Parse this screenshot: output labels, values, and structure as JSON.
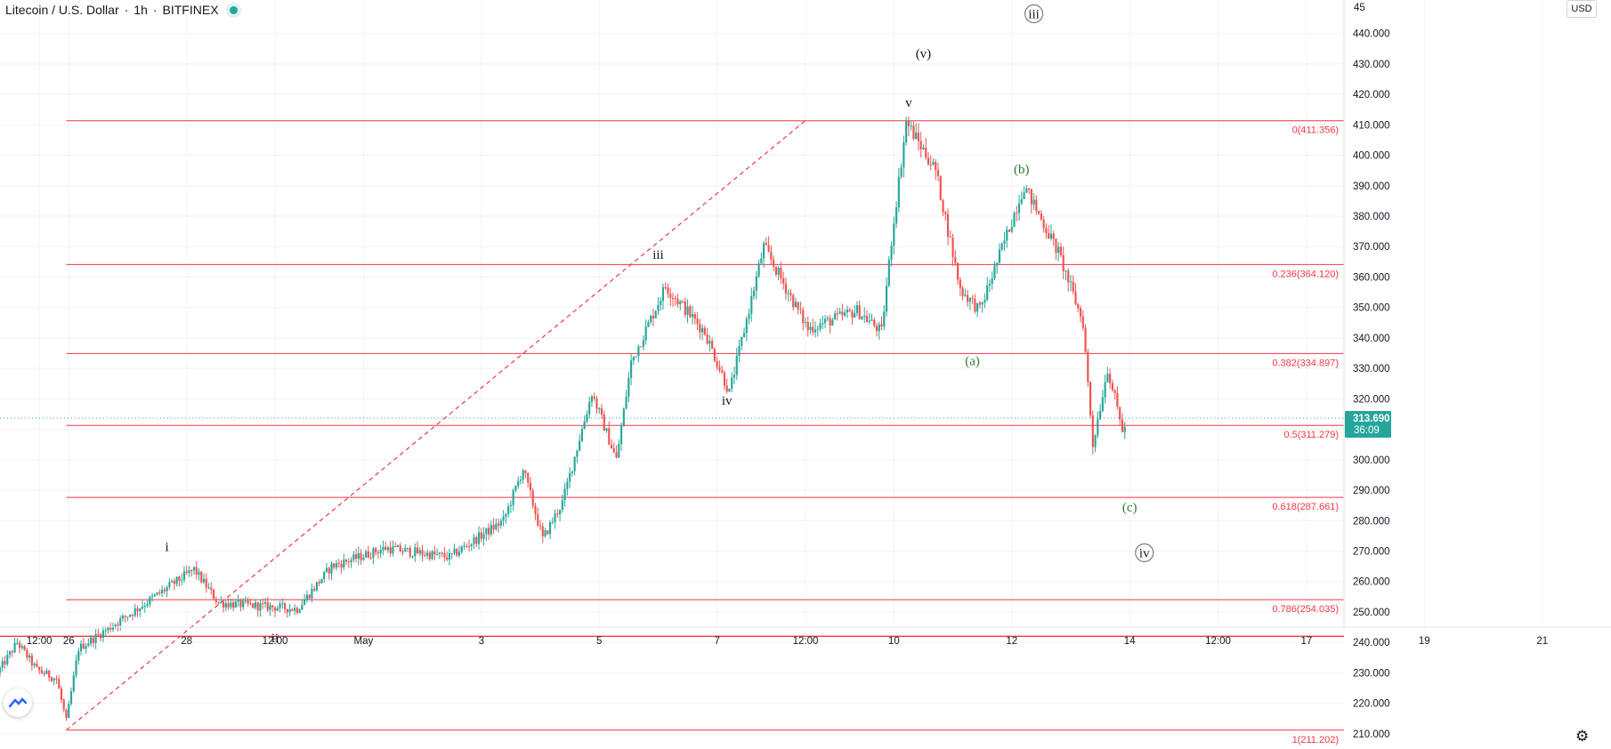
{
  "header": {
    "symbol": "Litecoin / U.S. Dollar",
    "interval": "1h",
    "exchange": "BITFINEX",
    "separator": "·",
    "currency": "USD"
  },
  "colors": {
    "up": "#26a69a",
    "down": "#ef5350",
    "fib": "#f23645",
    "wave_green": "#2e7d32",
    "wave_black": "#131722",
    "price_tag": "#26a69a"
  },
  "icons": {
    "logo": "tradingview-logo-icon",
    "settings": "gear-icon",
    "status": "market-open-dot-icon"
  },
  "chart_data": {
    "type": "candlestick",
    "y_axis": {
      "range": [
        205,
        451
      ],
      "ticks": [
        210,
        220,
        230,
        240,
        250,
        260,
        270,
        280,
        290,
        300,
        310,
        320,
        330,
        340,
        350,
        360,
        370,
        380,
        390,
        400,
        410,
        420,
        430,
        440
      ],
      "tick_labels": [
        "210.000",
        "220.000",
        "230.000",
        "240.000",
        "250.000",
        "260.000",
        "270.000",
        "280.000",
        "290.000",
        "300.000",
        "310.000",
        "320.000",
        "330.000",
        "340.000",
        "350.000",
        "360.000",
        "370.000",
        "380.000",
        "390.000",
        "400.000",
        "410.000",
        "420.000",
        "430.000",
        "440.000"
      ],
      "top_partial_label": "45"
    },
    "x_axis": {
      "range": [
        "2021-04-24 20:00",
        "2021-05-22 04:00"
      ],
      "ticks": [
        {
          "t": "2021-04-25 12:00",
          "label": "12:00"
        },
        {
          "t": "2021-04-26 00:00",
          "label": "26"
        },
        {
          "t": "2021-04-28 00:00",
          "label": "28"
        },
        {
          "t": "2021-04-29 12:00",
          "label": "12:00"
        },
        {
          "t": "2021-05-01 00:00",
          "label": "May"
        },
        {
          "t": "2021-05-03 00:00",
          "label": "3"
        },
        {
          "t": "2021-05-05 00:00",
          "label": "5"
        },
        {
          "t": "2021-05-07 00:00",
          "label": "7"
        },
        {
          "t": "2021-05-08 12:00",
          "label": "12:00"
        },
        {
          "t": "2021-05-10 00:00",
          "label": "10"
        },
        {
          "t": "2021-05-12 00:00",
          "label": "12"
        },
        {
          "t": "2021-05-14 00:00",
          "label": "14"
        },
        {
          "t": "2021-05-15 12:00",
          "label": "12:00"
        },
        {
          "t": "2021-05-17 00:00",
          "label": "17"
        },
        {
          "t": "2021-05-19 00:00",
          "label": "19"
        },
        {
          "t": "2021-05-21 00:00",
          "label": "21"
        }
      ]
    },
    "price_path": [
      {
        "t": "2021-04-24 20:00",
        "p": 230
      },
      {
        "t": "2021-04-25 04:00",
        "p": 240
      },
      {
        "t": "2021-04-25 12:00",
        "p": 231
      },
      {
        "t": "2021-04-25 20:00",
        "p": 228
      },
      {
        "t": "2021-04-26 00:00",
        "p": 214
      },
      {
        "t": "2021-04-26 05:00",
        "p": 238
      },
      {
        "t": "2021-04-27 03:00",
        "p": 250
      },
      {
        "t": "2021-04-28 04:00",
        "p": 264
      },
      {
        "t": "2021-04-28 14:00",
        "p": 253
      },
      {
        "t": "2021-04-29 22:00",
        "p": 251
      },
      {
        "t": "2021-04-30 12:00",
        "p": 265
      },
      {
        "t": "2021-05-01 10:00",
        "p": 271
      },
      {
        "t": "2021-05-02 12:00",
        "p": 268
      },
      {
        "t": "2021-05-03 10:00",
        "p": 280
      },
      {
        "t": "2021-05-03 18:00",
        "p": 297
      },
      {
        "t": "2021-05-04 02:00",
        "p": 274
      },
      {
        "t": "2021-05-04 10:00",
        "p": 286
      },
      {
        "t": "2021-05-04 22:00",
        "p": 322
      },
      {
        "t": "2021-05-05 08:00",
        "p": 300
      },
      {
        "t": "2021-05-05 14:00",
        "p": 332
      },
      {
        "t": "2021-05-06 04:00",
        "p": 357
      },
      {
        "t": "2021-05-06 20:00",
        "p": 342
      },
      {
        "t": "2021-05-07 06:00",
        "p": 322
      },
      {
        "t": "2021-05-07 20:00",
        "p": 370
      },
      {
        "t": "2021-05-08 14:00",
        "p": 343
      },
      {
        "t": "2021-05-09 10:00",
        "p": 349
      },
      {
        "t": "2021-05-09 20:00",
        "p": 342
      },
      {
        "t": "2021-05-10 00:00",
        "p": 372
      },
      {
        "t": "2021-05-10 06:00",
        "p": 411
      },
      {
        "t": "2021-05-10 18:00",
        "p": 395
      },
      {
        "t": "2021-05-11 04:00",
        "p": 356
      },
      {
        "t": "2021-05-11 12:00",
        "p": 349
      },
      {
        "t": "2021-05-12 06:00",
        "p": 390
      },
      {
        "t": "2021-05-12 20:00",
        "p": 368
      },
      {
        "t": "2021-05-13 06:00",
        "p": 345
      },
      {
        "t": "2021-05-13 10:00",
        "p": 305
      },
      {
        "t": "2021-05-13 16:00",
        "p": 330
      },
      {
        "t": "2021-05-13 22:00",
        "p": 310
      }
    ],
    "last_price": {
      "value": 313.69,
      "label": "313.690",
      "countdown": "36:09"
    },
    "fib_levels": [
      {
        "ratio": "0",
        "value": 411.356,
        "label": "0(411.356)"
      },
      {
        "ratio": "0.236",
        "value": 364.12,
        "label": "0.236(364.120)"
      },
      {
        "ratio": "0.382",
        "value": 334.897,
        "label": "0.382(334.897)"
      },
      {
        "ratio": "0.5",
        "value": 311.279,
        "label": "0.5(311.279)"
      },
      {
        "ratio": "0.618",
        "value": 287.661,
        "label": "0.618(287.661)"
      },
      {
        "ratio": "0.786",
        "value": 254.035,
        "label": "0.786(254.035)"
      },
      {
        "ratio": "1",
        "value": 211.202,
        "label": "1(211.202)"
      }
    ],
    "fib_start": "2021-04-25 23:00",
    "horizontal_line": {
      "value": 242
    },
    "trend_line": {
      "from": {
        "t": "2021-04-25 23:00",
        "p": 211.2
      },
      "to": {
        "t": "2021-05-08 12:00",
        "p": 411.4
      }
    },
    "wave_labels": [
      {
        "text": "i",
        "t": "2021-04-27 16:00",
        "p": 270,
        "color": "black"
      },
      {
        "text": "ii",
        "t": "2021-04-29 12:00",
        "p": 240,
        "color": "black"
      },
      {
        "text": "iii",
        "t": "2021-05-06 00:00",
        "p": 366,
        "color": "black"
      },
      {
        "text": "iv",
        "t": "2021-05-07 04:00",
        "p": 318,
        "color": "black"
      },
      {
        "text": "v",
        "t": "2021-05-10 06:00",
        "p": 416,
        "color": "black"
      },
      {
        "text": "(v)",
        "t": "2021-05-10 12:00",
        "p": 432,
        "color": "black"
      },
      {
        "text": "(a)",
        "t": "2021-05-11 08:00",
        "p": 331,
        "color": "green"
      },
      {
        "text": "(b)",
        "t": "2021-05-12 04:00",
        "p": 394,
        "color": "green"
      },
      {
        "text": "(c)",
        "t": "2021-05-14 00:00",
        "p": 283,
        "color": "green"
      },
      {
        "text": "iii",
        "t": "2021-05-12 09:00",
        "p": 445,
        "color": "black",
        "circled": true
      },
      {
        "text": "iv",
        "t": "2021-05-14 06:00",
        "p": 268,
        "color": "black",
        "circled": true
      }
    ]
  }
}
